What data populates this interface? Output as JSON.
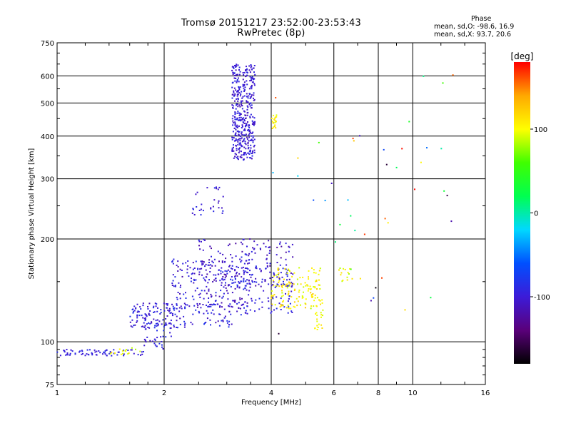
{
  "chart_data": {
    "type": "scatter",
    "title": "Tromsø 20151217 23:52:00-23:53:43",
    "subtitle": "RwPretec (8p)",
    "xlabel": "Frequency [MHz]",
    "ylabel": "Stationary phase Virtual Height [km]",
    "x_scale": "log",
    "y_scale": "log",
    "xlim": [
      1,
      16
    ],
    "ylim": [
      75,
      750
    ],
    "x_ticks": [
      1,
      2,
      4,
      6,
      8,
      10,
      16
    ],
    "x_tick_labels": [
      "1",
      "2",
      "4",
      "6",
      "8",
      "10",
      "16"
    ],
    "y_ticks": [
      75,
      100,
      200,
      300,
      400,
      500,
      600,
      750
    ],
    "y_tick_labels": [
      "75",
      "100",
      "200",
      "300",
      "400",
      "500",
      "600",
      "750"
    ],
    "grid": true,
    "phase_stats": {
      "heading": "Phase",
      "o_line": "mean, sd,O: -98.6, 16.9",
      "x_line": "mean, sd,X:  93.7, 20.6"
    },
    "colorbar": {
      "label": "[deg]",
      "ticks": [
        100,
        0,
        -100
      ],
      "tick_labels": [
        "100",
        "0",
        "-100"
      ],
      "range": [
        -180,
        180
      ],
      "colors": [
        "#000000",
        "#5a007a",
        "#3c1bd8",
        "#0050ff",
        "#00d8ff",
        "#00ff50",
        "#40ff00",
        "#ffff00",
        "#ffa800",
        "#ff0000"
      ]
    },
    "clusters": [
      {
        "name": "e-layer-low",
        "x": [
          1.0,
          1.75
        ],
        "y": [
          91,
          95
        ],
        "count": 70,
        "phase": [
          -105,
          -85
        ]
      },
      {
        "name": "e-layer-low-mixed",
        "x": [
          1.4,
          1.8
        ],
        "y": [
          91,
          96
        ],
        "count": 15,
        "phase": [
          80,
          120
        ]
      },
      {
        "name": "e-transition",
        "x": [
          1.75,
          2.1
        ],
        "y": [
          95,
          115
        ],
        "count": 40,
        "phase": [
          -110,
          -80
        ]
      },
      {
        "name": "e-spread",
        "x": [
          1.6,
          3.1
        ],
        "y": [
          110,
          130
        ],
        "count": 180,
        "phase": [
          -115,
          -80
        ]
      },
      {
        "name": "e-mid",
        "x": [
          2.1,
          3.5
        ],
        "y": [
          125,
          175
        ],
        "count": 220,
        "phase": [
          -120,
          -80
        ]
      },
      {
        "name": "e-high",
        "x": [
          2.5,
          4.6
        ],
        "y": [
          145,
          200
        ],
        "count": 170,
        "phase": [
          -125,
          -85
        ]
      },
      {
        "name": "e-right-o",
        "x": [
          3.2,
          4.6
        ],
        "y": [
          120,
          165
        ],
        "count": 90,
        "phase": [
          -110,
          -80
        ]
      },
      {
        "name": "e-right-x",
        "x": [
          4.0,
          5.5
        ],
        "y": [
          125,
          165
        ],
        "count": 130,
        "phase": [
          85,
          125
        ]
      },
      {
        "name": "e-right-x-tail",
        "x": [
          5.3,
          5.6
        ],
        "y": [
          108,
          135
        ],
        "count": 25,
        "phase": [
          90,
          115
        ]
      },
      {
        "name": "e-far",
        "x": [
          6.2,
          6.8
        ],
        "y": [
          150,
          165
        ],
        "count": 14,
        "phase": [
          80,
          115
        ]
      },
      {
        "name": "f-oblique",
        "x": [
          2.35,
          2.95
        ],
        "y": [
          235,
          285
        ],
        "count": 30,
        "phase": [
          -110,
          -85
        ]
      },
      {
        "name": "f-upper",
        "x": [
          3.1,
          3.6
        ],
        "y": [
          340,
          650
        ],
        "count": 420,
        "phase": [
          -115,
          -85
        ]
      },
      {
        "name": "f-upper-edge",
        "x": [
          4.0,
          4.15
        ],
        "y": [
          420,
          470
        ],
        "count": 20,
        "phase": [
          90,
          120
        ]
      },
      {
        "name": "scattered",
        "x": [
          4.0,
          13.0
        ],
        "y": [
          100,
          620
        ],
        "count": 45,
        "phase": [
          -180,
          180
        ]
      }
    ]
  }
}
